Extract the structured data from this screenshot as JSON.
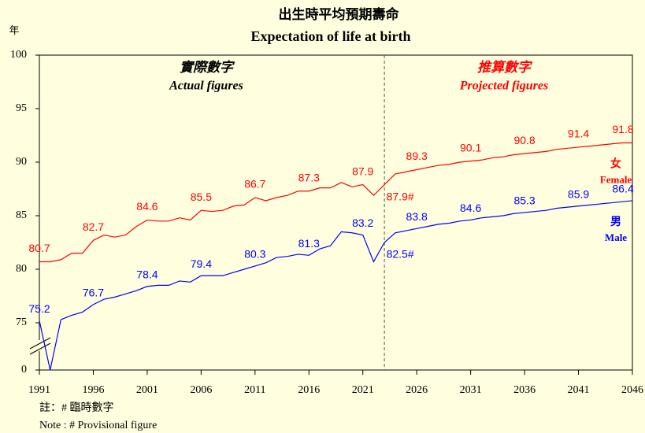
{
  "chart_data": {
    "type": "line",
    "title": "出生時平均預期壽命",
    "subtitle": "Expectation of life at birth",
    "y_axis_label": "年",
    "x": [
      1991,
      1992,
      1993,
      1994,
      1995,
      1996,
      1997,
      1998,
      1999,
      2000,
      2001,
      2002,
      2003,
      2004,
      2005,
      2006,
      2007,
      2008,
      2009,
      2010,
      2011,
      2012,
      2013,
      2014,
      2015,
      2016,
      2017,
      2018,
      2019,
      2020,
      2021,
      2022,
      2023,
      2024,
      2025,
      2026,
      2027,
      2028,
      2029,
      2030,
      2031,
      2032,
      2033,
      2034,
      2035,
      2036,
      2037,
      2038,
      2039,
      2040,
      2041,
      2042,
      2043,
      2044,
      2045,
      2046
    ],
    "series": [
      {
        "name": "Female",
        "name_zh": "女",
        "color": "#ff0000",
        "values": [
          80.7,
          80.7,
          80.9,
          81.5,
          81.5,
          82.7,
          83.2,
          83.0,
          83.2,
          84.0,
          84.6,
          84.5,
          84.5,
          84.8,
          84.6,
          85.5,
          85.4,
          85.5,
          85.9,
          86.0,
          86.7,
          86.4,
          86.7,
          86.9,
          87.3,
          87.3,
          87.6,
          87.6,
          88.1,
          87.7,
          87.9,
          86.9,
          87.9,
          88.9,
          89.1,
          89.3,
          89.5,
          89.7,
          89.8,
          90.0,
          90.1,
          90.2,
          90.4,
          90.5,
          90.7,
          90.8,
          90.9,
          91.0,
          91.2,
          91.3,
          91.4,
          91.5,
          91.6,
          91.7,
          91.8,
          91.8
        ],
        "value_labels": [
          "80.7",
          null,
          null,
          null,
          null,
          "82.7",
          null,
          null,
          null,
          null,
          "84.6",
          null,
          null,
          null,
          null,
          "85.5",
          null,
          null,
          null,
          null,
          "86.7",
          null,
          null,
          null,
          null,
          "87.3",
          null,
          null,
          null,
          null,
          "87.9",
          null,
          "87.9#",
          null,
          null,
          "89.3",
          null,
          null,
          null,
          null,
          "90.1",
          null,
          null,
          null,
          null,
          "90.8",
          null,
          null,
          null,
          null,
          "91.4",
          null,
          null,
          null,
          null,
          "91.8"
        ]
      },
      {
        "name": "Male",
        "name_zh": "男",
        "color": "#0000ff",
        "values": [
          75.2,
          74.8,
          75.3,
          75.7,
          76.0,
          76.7,
          77.2,
          77.4,
          77.7,
          78.0,
          78.4,
          78.5,
          78.5,
          78.9,
          78.8,
          79.4,
          79.4,
          79.4,
          79.7,
          80.0,
          80.3,
          80.6,
          81.1,
          81.2,
          81.4,
          81.3,
          81.9,
          82.2,
          83.5,
          83.4,
          83.2,
          80.7,
          82.5,
          83.4,
          83.6,
          83.8,
          84.0,
          84.2,
          84.3,
          84.5,
          84.6,
          84.8,
          84.9,
          85.0,
          85.2,
          85.3,
          85.4,
          85.5,
          85.7,
          85.8,
          85.9,
          86.0,
          86.1,
          86.2,
          86.3,
          86.4
        ],
        "value_labels": [
          "75.2",
          null,
          null,
          null,
          null,
          "76.7",
          null,
          null,
          null,
          null,
          "78.4",
          null,
          null,
          null,
          null,
          "79.4",
          null,
          null,
          null,
          null,
          "80.3",
          null,
          null,
          null,
          null,
          "81.3",
          null,
          null,
          null,
          null,
          "83.2",
          null,
          "82.5#",
          null,
          null,
          "83.8",
          null,
          null,
          null,
          null,
          "84.6",
          null,
          null,
          null,
          null,
          "85.3",
          null,
          null,
          null,
          null,
          "85.9",
          null,
          null,
          null,
          null,
          "86.4"
        ]
      }
    ],
    "xlim": [
      1991,
      2046
    ],
    "xticks": [
      1991,
      1996,
      2001,
      2006,
      2011,
      2016,
      2021,
      2026,
      2031,
      2036,
      2041,
      2046
    ],
    "ylim": [
      75,
      100
    ],
    "yticks": [
      0,
      75,
      80,
      85,
      90,
      95,
      100
    ],
    "axis_break": true,
    "divider": 2023,
    "annotations": {
      "actual_zh": "實際數字",
      "actual_en": "Actual figures",
      "projected_zh": "推算數字",
      "projected_en": "Projected figures"
    },
    "notes": [
      "註：# 臨時數字",
      "Note : # Provisional figure"
    ]
  }
}
